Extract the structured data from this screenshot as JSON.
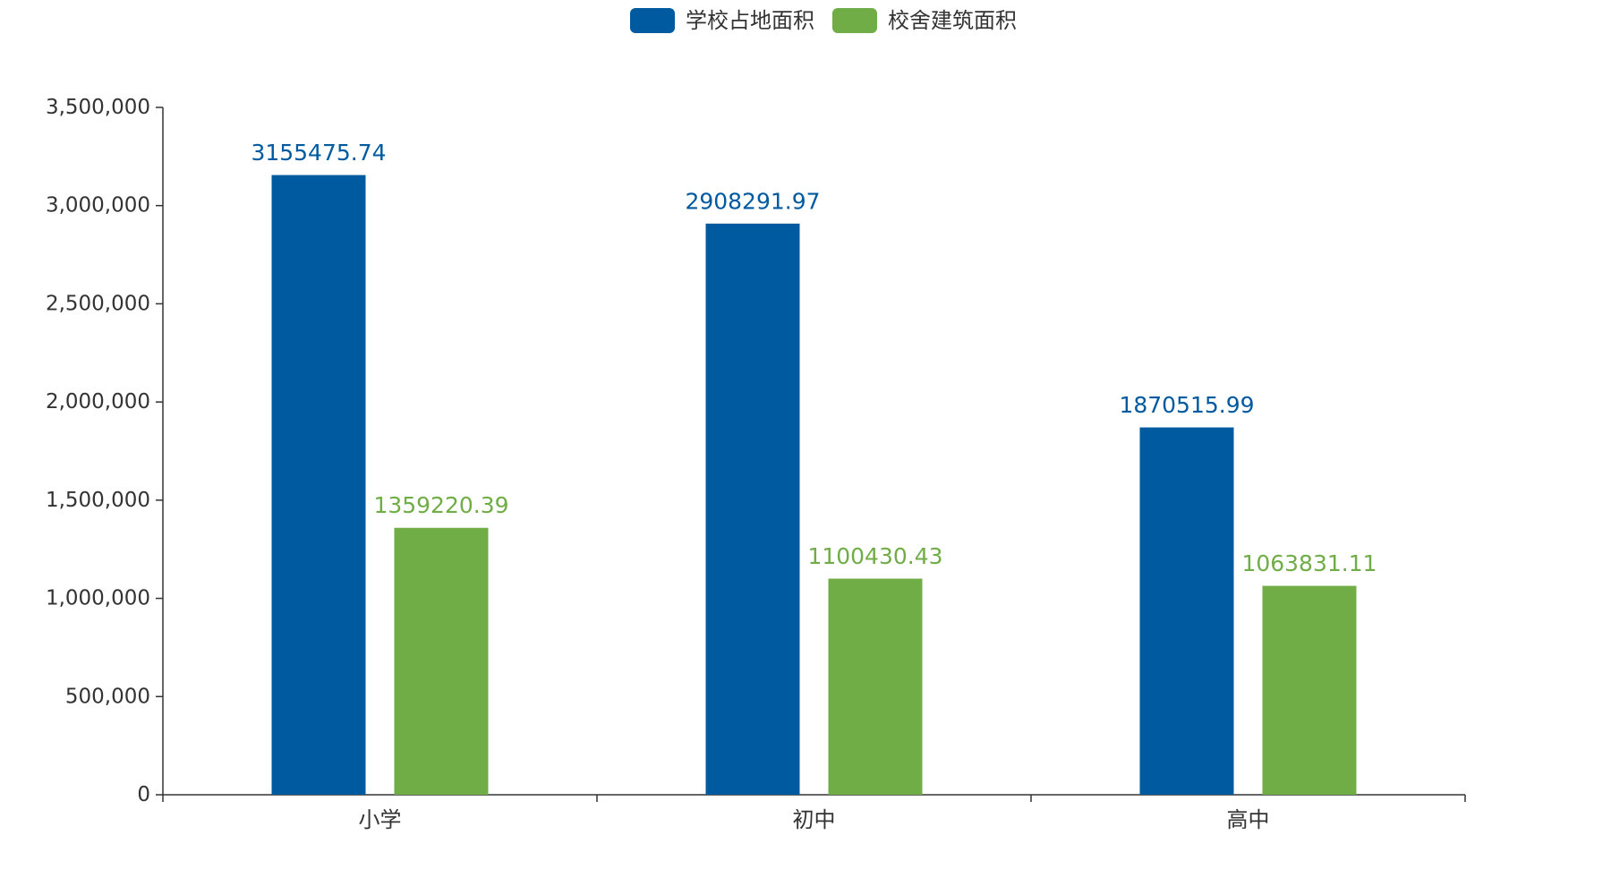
{
  "chart_data": {
    "type": "bar",
    "categories": [
      "小学",
      "初中",
      "高中"
    ],
    "series": [
      {
        "name": "学校占地面积",
        "color": "#005aa0",
        "values": [
          3155475.74,
          2908291.97,
          1870515.99
        ],
        "labels": [
          "3155475.74",
          "2908291.97",
          "1870515.99"
        ]
      },
      {
        "name": "校舍建筑面积",
        "color": "#70ad47",
        "values": [
          1359220.39,
          1100430.43,
          1063831.11
        ],
        "labels": [
          "1359220.39",
          "1100430.43",
          "1063831.11"
        ]
      }
    ],
    "ylim": [
      0,
      3500000
    ],
    "yticks": [
      0,
      500000,
      1000000,
      1500000,
      2000000,
      2500000,
      3000000,
      3500000
    ],
    "ytick_labels": [
      "0",
      "500,000",
      "1,000,000",
      "1,500,000",
      "2,000,000",
      "2,500,000",
      "3,000,000",
      "3,500,000"
    ],
    "title": "",
    "xlabel": "",
    "ylabel": "",
    "legend_position": "top-center",
    "grid": false
  }
}
